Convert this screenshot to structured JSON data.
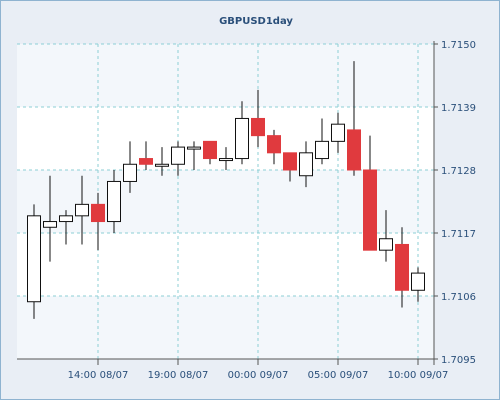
{
  "chart_data": {
    "type": "candlestick",
    "title": "GBPUSD1day",
    "y_axis": {
      "ticks": [
        "1.7150",
        "1.7139",
        "1.7128",
        "1.7117",
        "1.7106",
        "1.7095"
      ],
      "range": [
        1.7095,
        1.715
      ],
      "side": "right"
    },
    "x_axis": {
      "ticks": [
        "14:00 08/07",
        "19:00 08/07",
        "00:00 09/07",
        "05:00 09/07",
        "10:00 09/07"
      ]
    },
    "grid": true,
    "colors": {
      "up_fill": "#ffffff",
      "down_fill": "#e03a3e",
      "band_background": "#f3f7fb",
      "band_white": "#ffffff",
      "grid": "#8ccfd6",
      "axis_text": "#2a4f7a",
      "frame": "#8fb3d0"
    },
    "candles": [
      {
        "open": 1.7105,
        "high": 1.7122,
        "low": 1.7102,
        "close": 1.712
      },
      {
        "open": 1.7118,
        "high": 1.7127,
        "low": 1.7112,
        "close": 1.7119
      },
      {
        "open": 1.7119,
        "high": 1.7121,
        "low": 1.7115,
        "close": 1.712
      },
      {
        "open": 1.712,
        "high": 1.7127,
        "low": 1.7115,
        "close": 1.7122
      },
      {
        "open": 1.7122,
        "high": 1.7124,
        "low": 1.7114,
        "close": 1.7119
      },
      {
        "open": 1.7119,
        "high": 1.7128,
        "low": 1.7117,
        "close": 1.7126
      },
      {
        "open": 1.7126,
        "high": 1.7133,
        "low": 1.7124,
        "close": 1.7129
      },
      {
        "open": 1.713,
        "high": 1.7133,
        "low": 1.7128,
        "close": 1.7129
      },
      {
        "open": 1.7129,
        "high": 1.7132,
        "low": 1.7127,
        "close": 1.7129
      },
      {
        "open": 1.7129,
        "high": 1.7133,
        "low": 1.7127,
        "close": 1.7132
      },
      {
        "open": 1.7132,
        "high": 1.7133,
        "low": 1.7128,
        "close": 1.7132
      },
      {
        "open": 1.7133,
        "high": 1.7133,
        "low": 1.7129,
        "close": 1.713
      },
      {
        "open": 1.713,
        "high": 1.7132,
        "low": 1.7128,
        "close": 1.713
      },
      {
        "open": 1.713,
        "high": 1.714,
        "low": 1.7129,
        "close": 1.7137
      },
      {
        "open": 1.7137,
        "high": 1.7142,
        "low": 1.7132,
        "close": 1.7134
      },
      {
        "open": 1.7134,
        "high": 1.7135,
        "low": 1.7129,
        "close": 1.7131
      },
      {
        "open": 1.7131,
        "high": 1.7131,
        "low": 1.7126,
        "close": 1.7128
      },
      {
        "open": 1.7127,
        "high": 1.7133,
        "low": 1.7125,
        "close": 1.7131
      },
      {
        "open": 1.713,
        "high": 1.7137,
        "low": 1.7129,
        "close": 1.7133
      },
      {
        "open": 1.7133,
        "high": 1.7138,
        "low": 1.7131,
        "close": 1.7136
      },
      {
        "open": 1.7135,
        "high": 1.7147,
        "low": 1.7127,
        "close": 1.7128
      },
      {
        "open": 1.7128,
        "high": 1.7134,
        "low": 1.7114,
        "close": 1.7114
      },
      {
        "open": 1.7114,
        "high": 1.7121,
        "low": 1.7112,
        "close": 1.7116
      },
      {
        "open": 1.7115,
        "high": 1.7118,
        "low": 1.7104,
        "close": 1.7107
      },
      {
        "open": 1.7107,
        "high": 1.7111,
        "low": 1.7105,
        "close": 1.711
      }
    ]
  }
}
